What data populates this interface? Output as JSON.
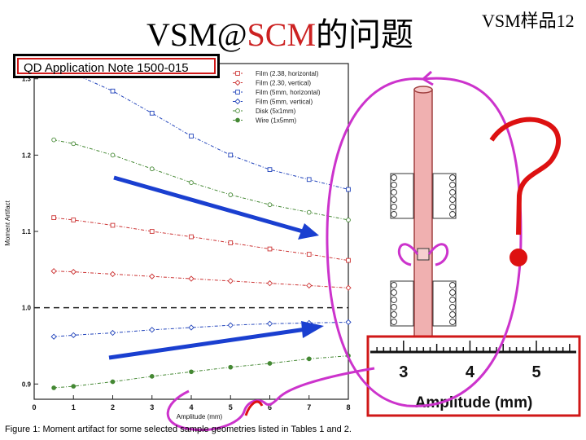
{
  "header": {
    "title_prefix": "VSM@",
    "title_accent": "SCM",
    "title_suffix": "的问题",
    "slide_label": "VSM样品12"
  },
  "note_label": "QD Application Note 1500-015",
  "caption": "Figure 1:  Moment artifact for some selected sample geometries listed in Tables 1 and 2.",
  "colors": {
    "accent": "#cc2222",
    "annotation_magenta": "#cc33cc",
    "annotation_red": "#dd1111",
    "arrow_blue": "#1a3fd0"
  },
  "chart_data": [
    {
      "type": "line",
      "xlabel": "Amplitude (mm)",
      "ylabel": "Moment Artifact",
      "xlim": [
        0,
        8
      ],
      "ylim": [
        0.88,
        1.32
      ],
      "xticks": [
        "0",
        "1",
        "2",
        "3",
        "4",
        "5",
        "6",
        "7",
        "8"
      ],
      "yticks": [
        "0.9",
        "1.0",
        "1.1",
        "1.2",
        "1.3"
      ],
      "reference_line": 1.0,
      "legend_position": "top-right",
      "x": [
        0.5,
        1,
        2,
        3,
        4,
        5,
        6,
        7,
        8
      ],
      "series": [
        {
          "name": "Film (2.38, horizontal)",
          "color": "#cc3333",
          "marker": "square-open",
          "values": [
            1.118,
            1.115,
            1.108,
            1.1,
            1.093,
            1.085,
            1.077,
            1.07,
            1.062
          ]
        },
        {
          "name": "Film (2.30, vertical)",
          "color": "#cc3333",
          "marker": "diamond-open",
          "values": [
            1.048,
            1.047,
            1.044,
            1.041,
            1.038,
            1.035,
            1.032,
            1.029,
            1.026
          ]
        },
        {
          "name": "Film (5mm, horizontal)",
          "color": "#2244bb",
          "marker": "square-open",
          "values": [
            1.315,
            1.307,
            1.284,
            1.255,
            1.225,
            1.2,
            1.181,
            1.168,
            1.155
          ]
        },
        {
          "name": "Film (5mm, vertical)",
          "color": "#2244bb",
          "marker": "diamond-open",
          "values": [
            0.962,
            0.964,
            0.967,
            0.971,
            0.974,
            0.977,
            0.979,
            0.98,
            0.981
          ]
        },
        {
          "name": "Disk (5x1mm)",
          "color": "#448833",
          "marker": "circle-open",
          "values": [
            1.22,
            1.215,
            1.2,
            1.182,
            1.164,
            1.148,
            1.135,
            1.125,
            1.115
          ]
        },
        {
          "name": "Wire (1x5mm)",
          "color": "#448833",
          "marker": "circle-filled",
          "values": [
            0.895,
            0.897,
            0.903,
            0.91,
            0.916,
            0.922,
            0.927,
            0.933,
            0.937
          ]
        }
      ]
    },
    {
      "type": "line",
      "xlabel": "Amplitude (mm)",
      "xlim": [
        2.5,
        5.6
      ],
      "xticks": [
        "3",
        "4",
        "5"
      ],
      "series": []
    }
  ]
}
